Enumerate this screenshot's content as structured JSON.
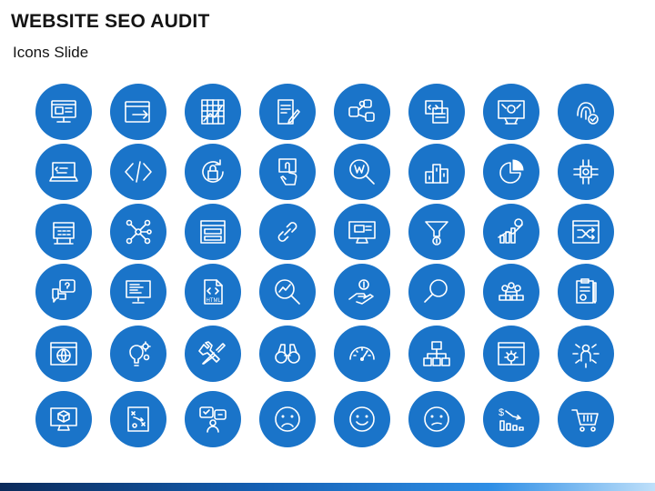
{
  "slide": {
    "title": "WEBSITE SEO AUDIT",
    "subtitle": "Icons Slide"
  },
  "colors": {
    "circle": "#1a74c9",
    "icon_stroke": "#ffffff",
    "footer_dark": "#0b2a5a",
    "footer_light": "#bfe0fa"
  },
  "icons": [
    [
      "seo-report-screen-icon",
      "browser-redirect-icon",
      "growth-grid-chart-icon",
      "document-edit-icon",
      "social-media-network-icon",
      "code-screens-icon",
      "settings-tools-screen-icon",
      "fingerprint-check-icon"
    ],
    [
      "laptop-code-icon",
      "code-brackets-icon",
      "refresh-lock-icon",
      "touch-click-icon",
      "wikipedia-search-icon",
      "ranking-podium-icon",
      "pie-chart-icon",
      "chip-processor-icon"
    ],
    [
      "building-board-icon",
      "network-nodes-icon",
      "server-window-icon",
      "chain-link-icon",
      "monitor-ad-icon",
      "sales-funnel-icon",
      "growth-bar-chart-icon",
      "shuffle-window-icon"
    ],
    [
      "chat-question-icon",
      "code-monitor-icon",
      "html-file-icon",
      "analytics-magnifier-icon",
      "money-hand-icon",
      "search-magnifier-icon",
      "team-people-icon",
      "clipboard-report-icon"
    ],
    [
      "globe-browser-icon",
      "idea-gears-icon",
      "wrench-screwdriver-icon",
      "binoculars-icon",
      "speedometer-icon",
      "sitemap-hierarchy-icon",
      "browser-settings-icon",
      "user-connections-icon"
    ],
    [
      "monitor-cube-icon",
      "strategy-board-icon",
      "social-feedback-icon",
      "sad-face-icon",
      "happy-face-icon",
      "neutral-face-icon",
      "dollar-decline-icon",
      "shopping-cart-icon"
    ]
  ]
}
